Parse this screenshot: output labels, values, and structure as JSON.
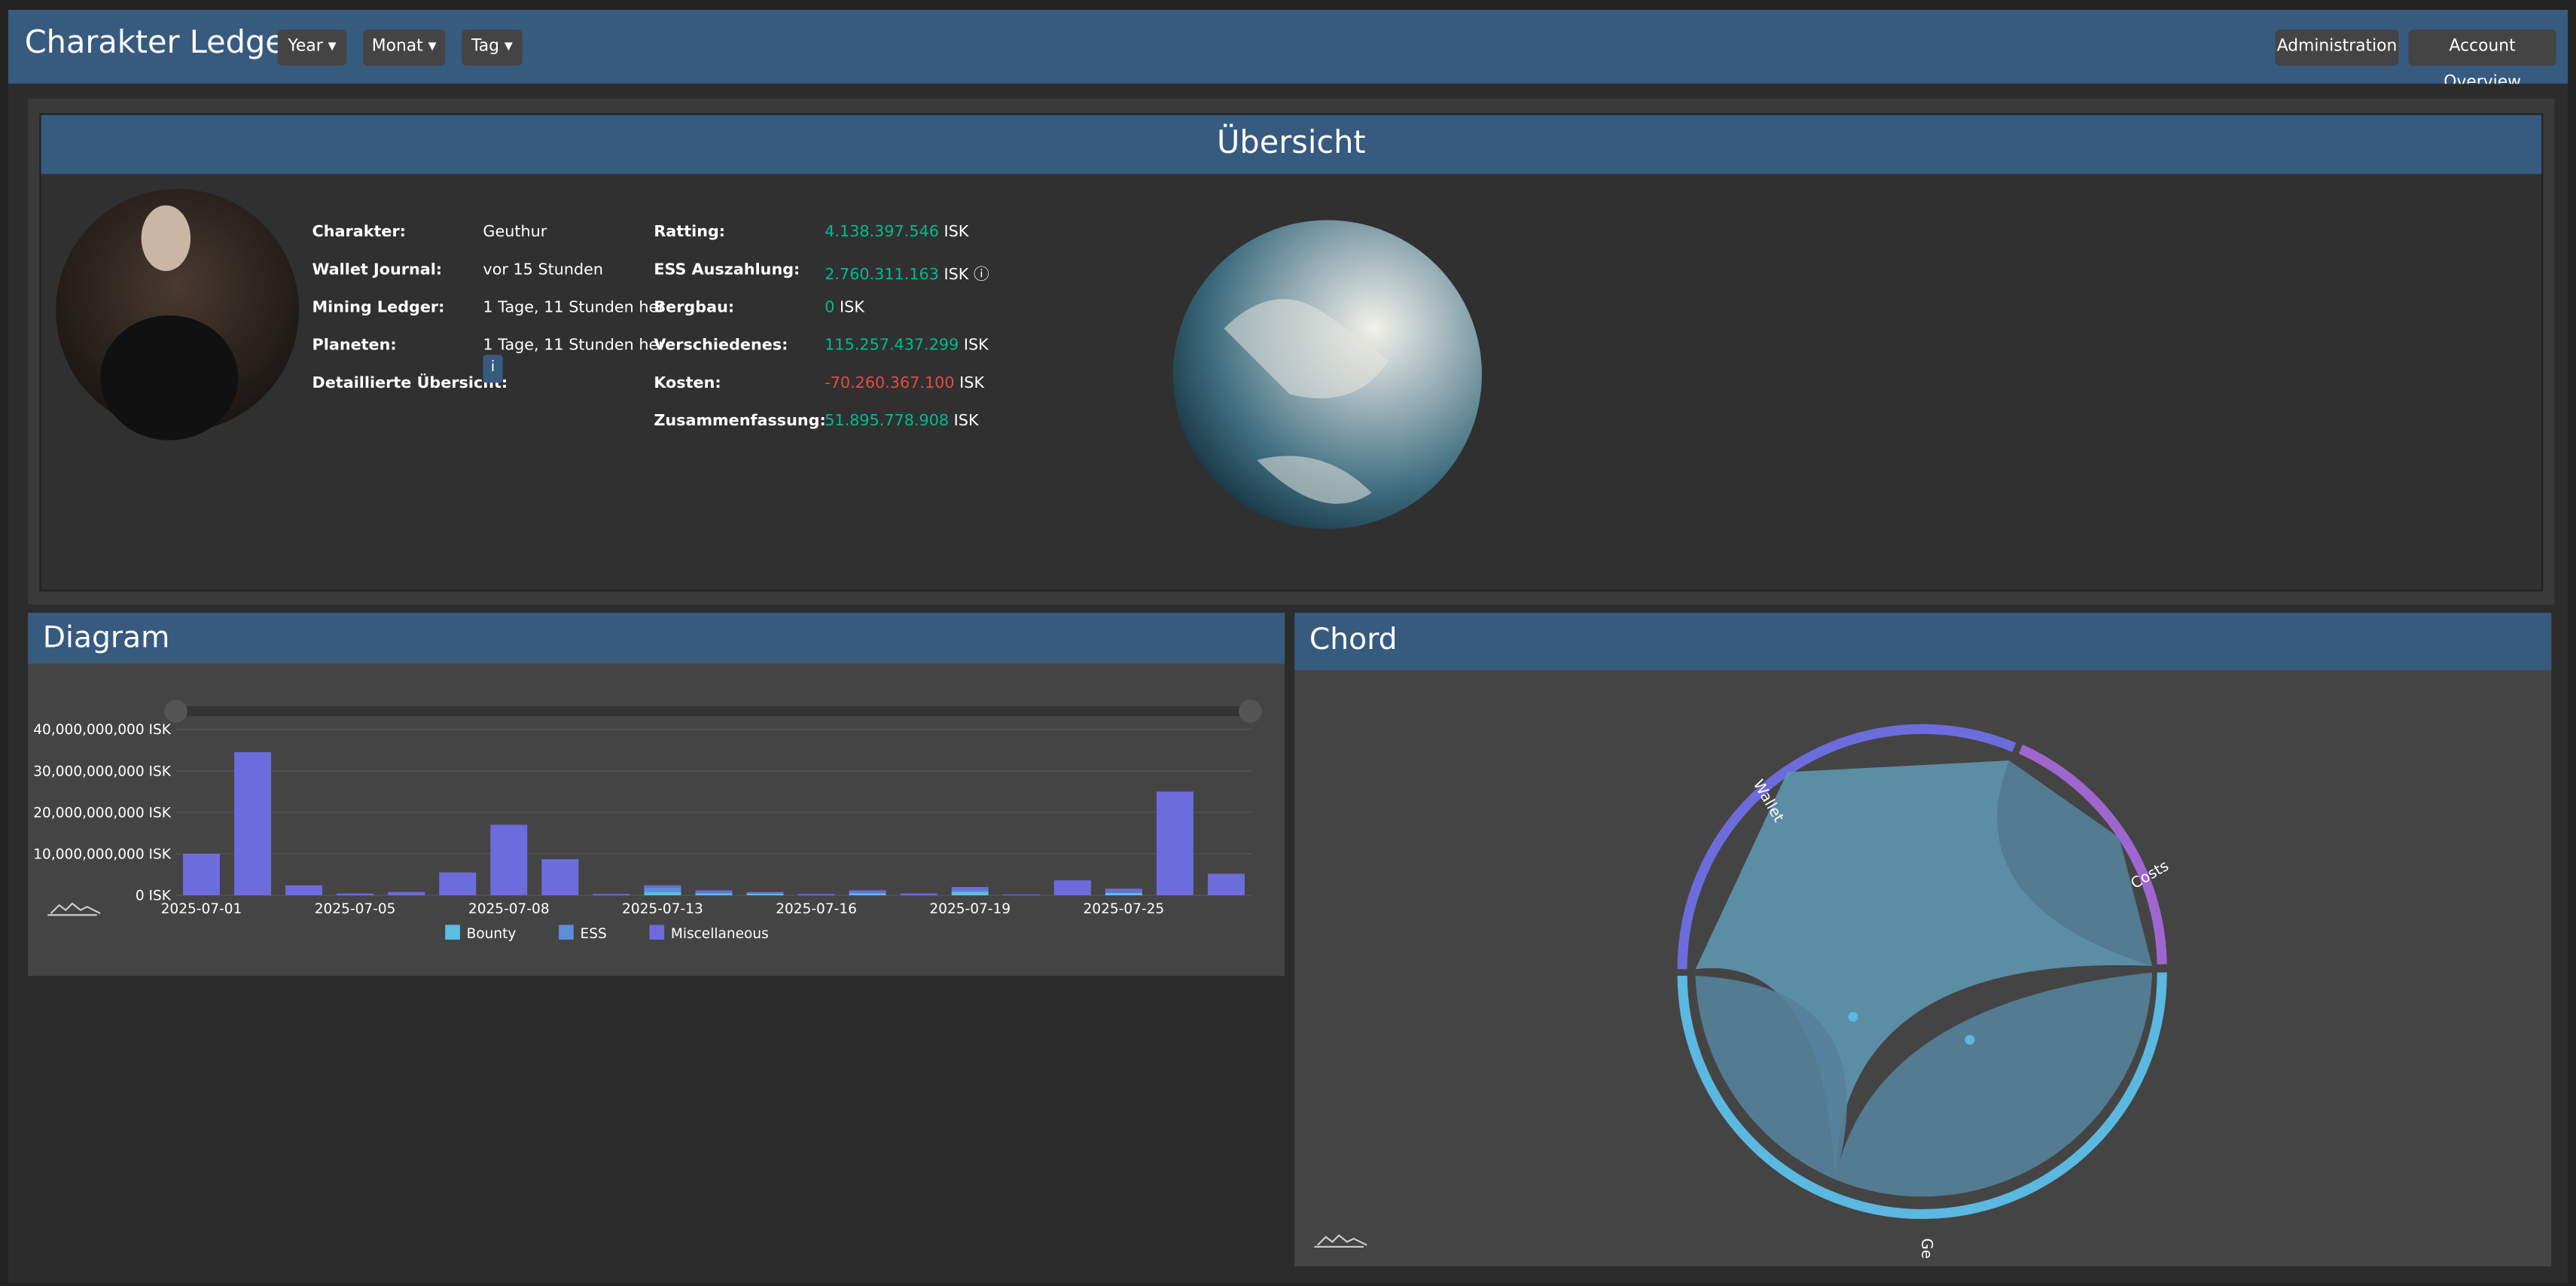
{
  "navbar": {
    "title": "Charakter Ledger",
    "menus": [
      "Year",
      "Monat",
      "Tag"
    ],
    "buttons": [
      "Administration",
      "Account Overview"
    ]
  },
  "overview": {
    "title": "Übersicht",
    "info": [
      {
        "label": "Charakter:",
        "value": "Geuthur"
      },
      {
        "label": "Wallet Journal:",
        "value": "vor 15 Stunden"
      },
      {
        "label": "Mining Ledger:",
        "value": "1 Tage, 11 Stunden her"
      },
      {
        "label": "Planeten:",
        "value": "1 Tage, 11 Stunden her"
      },
      {
        "label": "Detaillierte Übersicht:"
      }
    ],
    "totals": [
      {
        "label": "Ratting:",
        "value": "4.138.397.546",
        "unit": "ISK",
        "color": "#00bc8c"
      },
      {
        "label": "ESS Auszahlung:",
        "value": "2.760.311.163",
        "unit": "ISK",
        "color": "#00bc8c"
      },
      {
        "label": "Bergbau:",
        "value": "0",
        "unit": "ISK",
        "color": "#00bc8c"
      },
      {
        "label": "Verschiedenes:",
        "value": "115.257.437.299",
        "unit": "ISK",
        "color": "#00bc8c"
      },
      {
        "label": "Kosten:",
        "value": "-70.260.367.100",
        "unit": "ISK",
        "color": "#e74c3c"
      },
      {
        "label": "Zusammenfassung:",
        "value": "51.895.778.908",
        "unit": "ISK",
        "color": "#00bc8c"
      }
    ]
  },
  "chart_data": [
    {
      "type": "bar",
      "stacked": true,
      "title": "Diagram",
      "grid": true,
      "legend": "bottom",
      "categories": [
        "2025-07-01",
        null,
        null,
        "2025-07-05",
        null,
        null,
        "2025-07-08",
        null,
        null,
        "2025-07-13",
        null,
        null,
        "2025-07-16",
        null,
        null,
        "2025-07-19",
        null,
        null,
        "2025-07-25",
        null,
        null
      ],
      "series": [
        {
          "name": "Bounty",
          "color": "#5bbfe0",
          "values": [
            0,
            0,
            0,
            0,
            0,
            0,
            0,
            0,
            0,
            800000000.0,
            500000000.0,
            400000000.0,
            0,
            500000000.0,
            0,
            800000000.0,
            0,
            0,
            600000000.0,
            0,
            0
          ]
        },
        {
          "name": "ESS",
          "color": "#5b8fd9",
          "values": [
            0,
            0,
            0,
            0,
            0,
            0,
            0,
            0,
            0,
            1000000000.0,
            0,
            0,
            0,
            0,
            0,
            400000000.0,
            0,
            0,
            0,
            0,
            0
          ]
        },
        {
          "name": "Miscellaneous",
          "color": "#6c6cdc",
          "values": [
            10000000000.0,
            34500000000.0,
            2400000000.0,
            400000000.0,
            800000000.0,
            5500000000.0,
            17000000000.0,
            8700000000.0,
            300000000.0,
            600000000.0,
            700000000.0,
            400000000.0,
            300000000.0,
            700000000.0,
            400000000.0,
            800000000.0,
            200000000.0,
            3600000000.0,
            1000000000.0,
            25000000000.0,
            5200000000.0
          ]
        }
      ],
      "ylim": [
        0,
        40000000000
      ],
      "yticks": [
        {
          "value": 0,
          "label": "0 ISK"
        },
        {
          "value": 10000000000,
          "label": "10,000,000,000 ISK"
        },
        {
          "value": 20000000000,
          "label": "20,000,000,000 ISK"
        },
        {
          "value": 30000000000,
          "label": "30,000,000,000 ISK"
        },
        {
          "value": 40000000000,
          "label": "40,000,000,000 ISK"
        }
      ]
    },
    {
      "type": "chord",
      "title": "Chord",
      "labels": [
        "Wallet",
        "Costs",
        "Ge"
      ]
    }
  ]
}
